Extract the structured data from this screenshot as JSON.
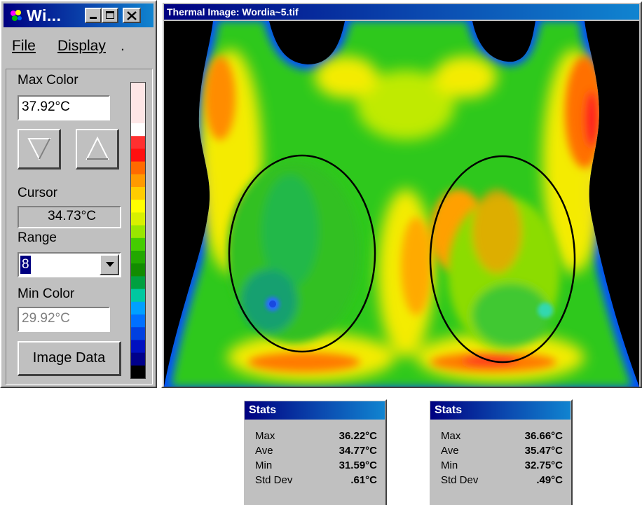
{
  "control_window": {
    "title": "Wi...",
    "menu": {
      "file": "File",
      "display": "Display",
      "extra": "."
    },
    "max_color": {
      "label": "Max Color",
      "value": "37.92°C"
    },
    "cursor": {
      "label": "Cursor",
      "value": "34.73°C"
    },
    "range": {
      "label": "Range",
      "value": "8"
    },
    "min_color": {
      "label": "Min Color",
      "value": "29.92°C"
    },
    "image_data_button": "Image Data",
    "palette_colors": [
      "#fde6e6",
      "#ffffff",
      "#ff3030",
      "#ff1010",
      "#ff6a00",
      "#ff9a00",
      "#ffcc00",
      "#ffff00",
      "#d8f000",
      "#99e600",
      "#44cc00",
      "#22a800",
      "#128c00",
      "#00a040",
      "#00c8a0",
      "#00a0ff",
      "#0070ff",
      "#0040e0",
      "#0010c0",
      "#00008a",
      "#000000"
    ]
  },
  "thermal_window": {
    "title": "Thermal Image: Wordia~5.tif"
  },
  "stats_panels": [
    {
      "title": "Stats",
      "rows": [
        {
          "label": "Max",
          "value": "36.22°C"
        },
        {
          "label": "Ave",
          "value": "34.77°C"
        },
        {
          "label": "Min",
          "value": "31.59°C"
        },
        {
          "label": "Std Dev",
          "value": ".61°C"
        }
      ]
    },
    {
      "title": "Stats",
      "rows": [
        {
          "label": "Max",
          "value": "36.66°C"
        },
        {
          "label": "Ave",
          "value": "35.47°C"
        },
        {
          "label": "Min",
          "value": "32.75°C"
        },
        {
          "label": "Std Dev",
          "value": ".49°C"
        }
      ]
    }
  ]
}
